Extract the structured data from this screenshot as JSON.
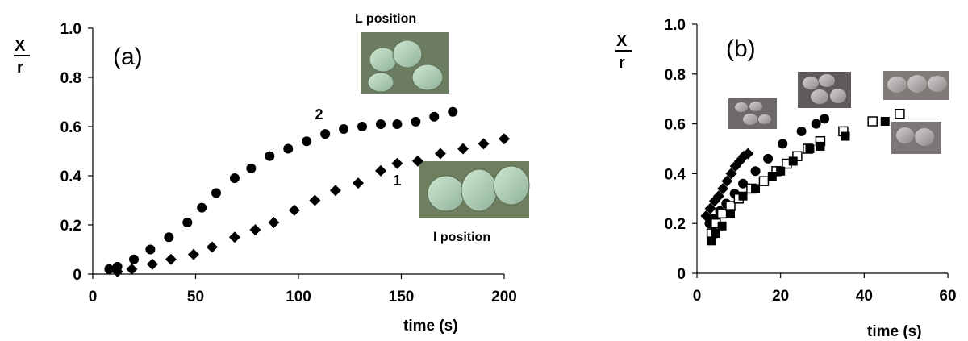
{
  "chart_data": [
    {
      "type": "scatter",
      "panel_label": "(a)",
      "xlabel": "time (s)",
      "ylabel_top": "X",
      "ylabel_bottom": "r",
      "xlim": [
        0,
        200
      ],
      "ylim": [
        0,
        1.0
      ],
      "xticks": [
        "0",
        "50",
        "100",
        "150",
        "200"
      ],
      "yticks": [
        "0",
        "0.2",
        "0.4",
        "0.6",
        "0.8",
        "1.0"
      ],
      "grid": false,
      "annotations": [
        {
          "text": "2",
          "x": 110,
          "y": 0.63
        },
        {
          "text": "1",
          "x": 148,
          "y": 0.36
        }
      ],
      "image_captions": {
        "top": "L position",
        "bottom": "l position"
      },
      "series": [
        {
          "marker": "circle",
          "x": [
            8,
            12,
            20,
            28,
            37,
            46,
            53,
            60,
            69,
            77,
            86,
            95,
            104,
            113,
            122,
            131,
            140,
            148,
            157,
            166,
            175
          ],
          "y": [
            0.02,
            0.03,
            0.06,
            0.1,
            0.15,
            0.21,
            0.27,
            0.33,
            0.39,
            0.43,
            0.48,
            0.51,
            0.54,
            0.57,
            0.59,
            0.6,
            0.61,
            0.61,
            0.62,
            0.64,
            0.66
          ]
        },
        {
          "marker": "diamond",
          "x": [
            12,
            19,
            29,
            38,
            49,
            58,
            69,
            79,
            88,
            98,
            108,
            118,
            129,
            140,
            148,
            158,
            169,
            180,
            190,
            200
          ],
          "y": [
            0.01,
            0.02,
            0.04,
            0.06,
            0.08,
            0.11,
            0.15,
            0.18,
            0.21,
            0.26,
            0.3,
            0.34,
            0.37,
            0.42,
            0.45,
            0.46,
            0.49,
            0.51,
            0.53,
            0.55
          ]
        }
      ]
    },
    {
      "type": "scatter",
      "panel_label": "(b)",
      "xlabel": "time (s)",
      "ylabel_top": "X",
      "ylabel_bottom": "r",
      "xlim": [
        0,
        60
      ],
      "ylim": [
        0,
        1.0
      ],
      "xticks": [
        "0",
        "20",
        "40",
        "60"
      ],
      "yticks": [
        "0",
        "0.2",
        "0.4",
        "0.6",
        "0.8",
        "1.0"
      ],
      "grid": false,
      "series": [
        {
          "marker": "diamond",
          "x": [
            2.2,
            3.2,
            4.2,
            5.2,
            6.2,
            7.2,
            8.2,
            9.2,
            10.2,
            11.2,
            12.2
          ],
          "y": [
            0.23,
            0.26,
            0.29,
            0.31,
            0.34,
            0.37,
            0.4,
            0.43,
            0.45,
            0.47,
            0.48
          ]
        },
        {
          "marker": "circle",
          "x": [
            3,
            4,
            5.5,
            7,
            9,
            11,
            14,
            17,
            20.5,
            25,
            28.5,
            30.5
          ],
          "y": [
            0.2,
            0.22,
            0.25,
            0.28,
            0.32,
            0.36,
            0.41,
            0.46,
            0.52,
            0.57,
            0.6,
            0.62
          ]
        },
        {
          "marker": "square-open",
          "x": [
            3.5,
            4.5,
            6,
            8,
            10,
            13,
            16,
            19,
            21.5,
            24,
            26.5,
            29.5,
            35,
            42,
            48.5
          ],
          "y": [
            0.16,
            0.2,
            0.24,
            0.27,
            0.3,
            0.34,
            0.37,
            0.41,
            0.44,
            0.47,
            0.5,
            0.53,
            0.57,
            0.61,
            0.64
          ]
        },
        {
          "marker": "square",
          "x": [
            3.5,
            4.5,
            6,
            8,
            11,
            14,
            18,
            20,
            23,
            27,
            29.5,
            35.5,
            45
          ],
          "y": [
            0.13,
            0.16,
            0.19,
            0.24,
            0.31,
            0.34,
            0.39,
            0.41,
            0.45,
            0.5,
            0.51,
            0.55,
            0.61
          ]
        }
      ]
    }
  ]
}
